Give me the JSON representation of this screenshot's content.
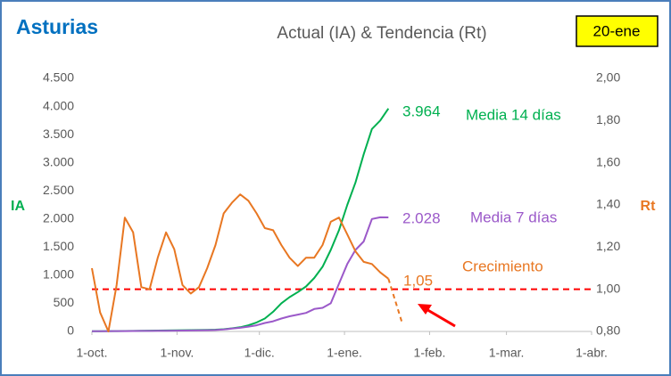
{
  "chart_data": {
    "type": "line",
    "region": "Asturias",
    "title": "Actual (IA) & Tendencia (Rt)",
    "date": "20-ene",
    "ylabel": "IA",
    "y2label": "Rt",
    "x": [
      0,
      3,
      6,
      9,
      12,
      15,
      18,
      21,
      24,
      27,
      30,
      33,
      36,
      39,
      42,
      45,
      48,
      51,
      54,
      57,
      60,
      63,
      66,
      69,
      72,
      75,
      78,
      81,
      84,
      87,
      90,
      93,
      96,
      99,
      102,
      105,
      108,
      113
    ],
    "xlim": [
      0,
      182
    ],
    "xticks": [
      {
        "value": 0,
        "label": "1-oct."
      },
      {
        "value": 31,
        "label": "1-nov."
      },
      {
        "value": 61,
        "label": "1-dic."
      },
      {
        "value": 92,
        "label": "1-ene."
      },
      {
        "value": 123,
        "label": "1-feb."
      },
      {
        "value": 151,
        "label": "1-mar."
      },
      {
        "value": 182,
        "label": "1-abr."
      }
    ],
    "ylim": [
      0,
      4500
    ],
    "yticks": [
      0,
      500,
      {
        "value": 1000,
        "label": "1.000"
      },
      {
        "value": 1500,
        "label": "1.500"
      },
      {
        "value": 2000,
        "label": "2.000"
      },
      {
        "value": 2500,
        "label": "2.500"
      },
      {
        "value": 3000,
        "label": "3.000"
      },
      {
        "value": 3500,
        "label": "3.500"
      },
      {
        "value": 4000,
        "label": "4.000"
      },
      {
        "value": 4500,
        "label": "4.500"
      }
    ],
    "y2lim": [
      0.8,
      2.0
    ],
    "y2ticks": [
      {
        "value": 0.8,
        "label": "0,80"
      },
      {
        "value": 1.0,
        "label": "1,00"
      },
      {
        "value": 1.2,
        "label": "1,20"
      },
      {
        "value": 1.4,
        "label": "1,40"
      },
      {
        "value": 1.6,
        "label": "1,60"
      },
      {
        "value": 1.8,
        "label": "1,80"
      },
      {
        "value": 2.0,
        "label": "2,00"
      }
    ],
    "grid": false,
    "reference": {
      "value": 1.0,
      "axis": "y2",
      "color": "#ff0000"
    },
    "series": [
      {
        "name": "Media 14 días",
        "color": "#00b050",
        "axis": "y",
        "values": [
          5,
          5,
          6,
          7,
          8,
          10,
          12,
          14,
          16,
          18,
          20,
          22,
          24,
          26,
          28,
          32,
          40,
          55,
          75,
          110,
          160,
          230,
          350,
          500,
          610,
          700,
          800,
          950,
          1150,
          1450,
          1800,
          2250,
          2650,
          3150,
          3600,
          3750,
          3964,
          null
        ],
        "value_labels": [
          null,
          null,
          null,
          null,
          null,
          null,
          null,
          null,
          null,
          null,
          null,
          null,
          null,
          null,
          null,
          null,
          null,
          null,
          null,
          null,
          null,
          null,
          null,
          null,
          null,
          null,
          null,
          null,
          null,
          null,
          null,
          null,
          null,
          null,
          null,
          null,
          "3.964",
          null
        ]
      },
      {
        "name": "Media 7 días",
        "color": "#9b59c9",
        "axis": "y",
        "values": [
          5,
          5,
          5,
          6,
          7,
          8,
          9,
          10,
          11,
          12,
          14,
          16,
          18,
          20,
          22,
          26,
          35,
          50,
          65,
          85,
          110,
          150,
          180,
          230,
          270,
          300,
          330,
          400,
          420,
          500,
          850,
          1200,
          1450,
          1600,
          2000,
          2030,
          2028,
          null
        ],
        "value_labels": [
          null,
          null,
          null,
          null,
          null,
          null,
          null,
          null,
          null,
          null,
          null,
          null,
          null,
          null,
          null,
          null,
          null,
          null,
          null,
          null,
          null,
          null,
          null,
          null,
          null,
          null,
          null,
          null,
          null,
          null,
          null,
          null,
          null,
          null,
          null,
          null,
          "2.028",
          null
        ]
      },
      {
        "name": "Crecimiento",
        "color": "#e87722",
        "axis": "y2",
        "values": [
          1.1,
          0.89,
          0.8,
          1.02,
          1.34,
          1.27,
          1.01,
          1.0,
          1.15,
          1.27,
          1.19,
          1.02,
          0.98,
          1.01,
          1.1,
          1.21,
          1.36,
          1.41,
          1.45,
          1.42,
          1.36,
          1.29,
          1.28,
          1.21,
          1.15,
          1.11,
          1.15,
          1.15,
          1.21,
          1.32,
          1.34,
          1.26,
          1.18,
          1.13,
          1.12,
          1.08,
          1.05,
          null
        ],
        "value_labels": [
          null,
          null,
          null,
          null,
          null,
          null,
          null,
          null,
          null,
          null,
          null,
          null,
          null,
          null,
          null,
          null,
          null,
          null,
          null,
          null,
          null,
          null,
          null,
          null,
          null,
          null,
          null,
          null,
          null,
          null,
          null,
          null,
          null,
          null,
          null,
          null,
          "1,05",
          null
        ]
      },
      {
        "color": "#e87722",
        "axis": "y2",
        "dashed": true,
        "values": [
          null,
          null,
          null,
          null,
          null,
          null,
          null,
          null,
          null,
          null,
          null,
          null,
          null,
          null,
          null,
          null,
          null,
          null,
          null,
          null,
          null,
          null,
          null,
          null,
          null,
          null,
          null,
          null,
          null,
          null,
          null,
          null,
          null,
          null,
          null,
          null,
          1.05,
          0.84
        ]
      }
    ]
  }
}
